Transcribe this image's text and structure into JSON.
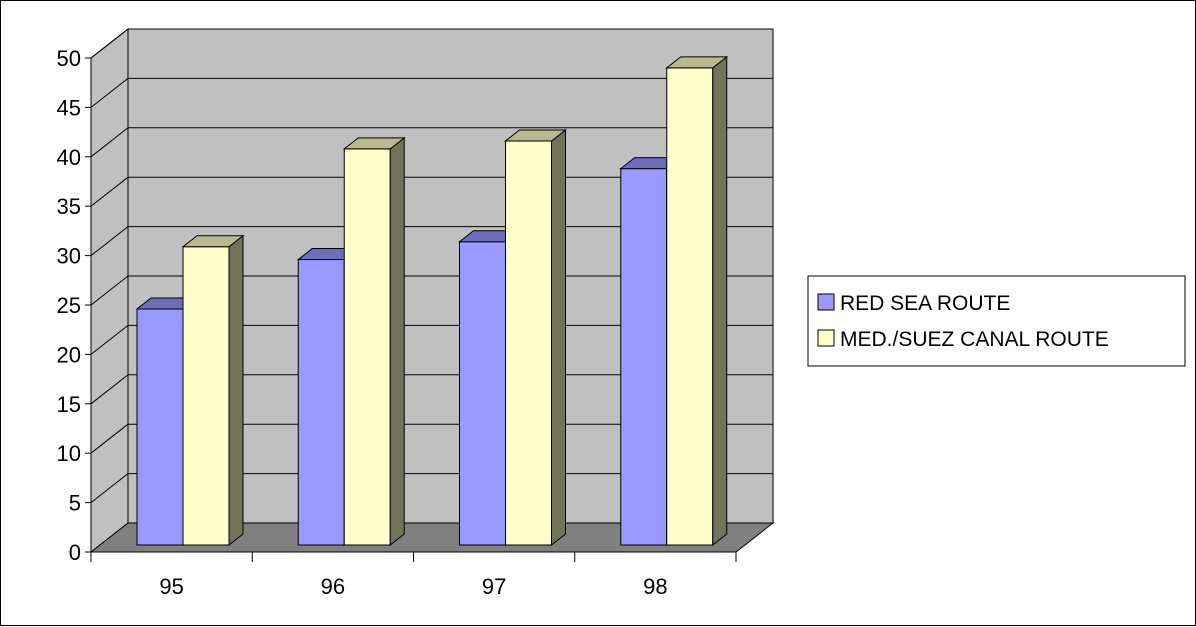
{
  "chart_data": {
    "type": "bar",
    "categories": [
      "95",
      "96",
      "97",
      "98"
    ],
    "series": [
      {
        "name": "RED SEA ROUTE",
        "values": [
          24.6,
          29.6,
          31.4,
          38.8
        ],
        "color": "#9999FF"
      },
      {
        "name": "MED./SUEZ CANAL ROUTE",
        "values": [
          30.9,
          40.8,
          41.6,
          49.0
        ],
        "color": "#FFFFCC"
      }
    ],
    "yticks": [
      "0",
      "5",
      "10",
      "15",
      "20",
      "25",
      "30",
      "35",
      "40",
      "45",
      "50"
    ],
    "ylim": [
      0,
      50
    ],
    "grid": true,
    "legend_position": "right",
    "title": "",
    "xlabel": "",
    "ylabel": "",
    "colors": {
      "back_wall": "#C0C0C0",
      "floor": "#808080",
      "grid": "#000000"
    }
  }
}
